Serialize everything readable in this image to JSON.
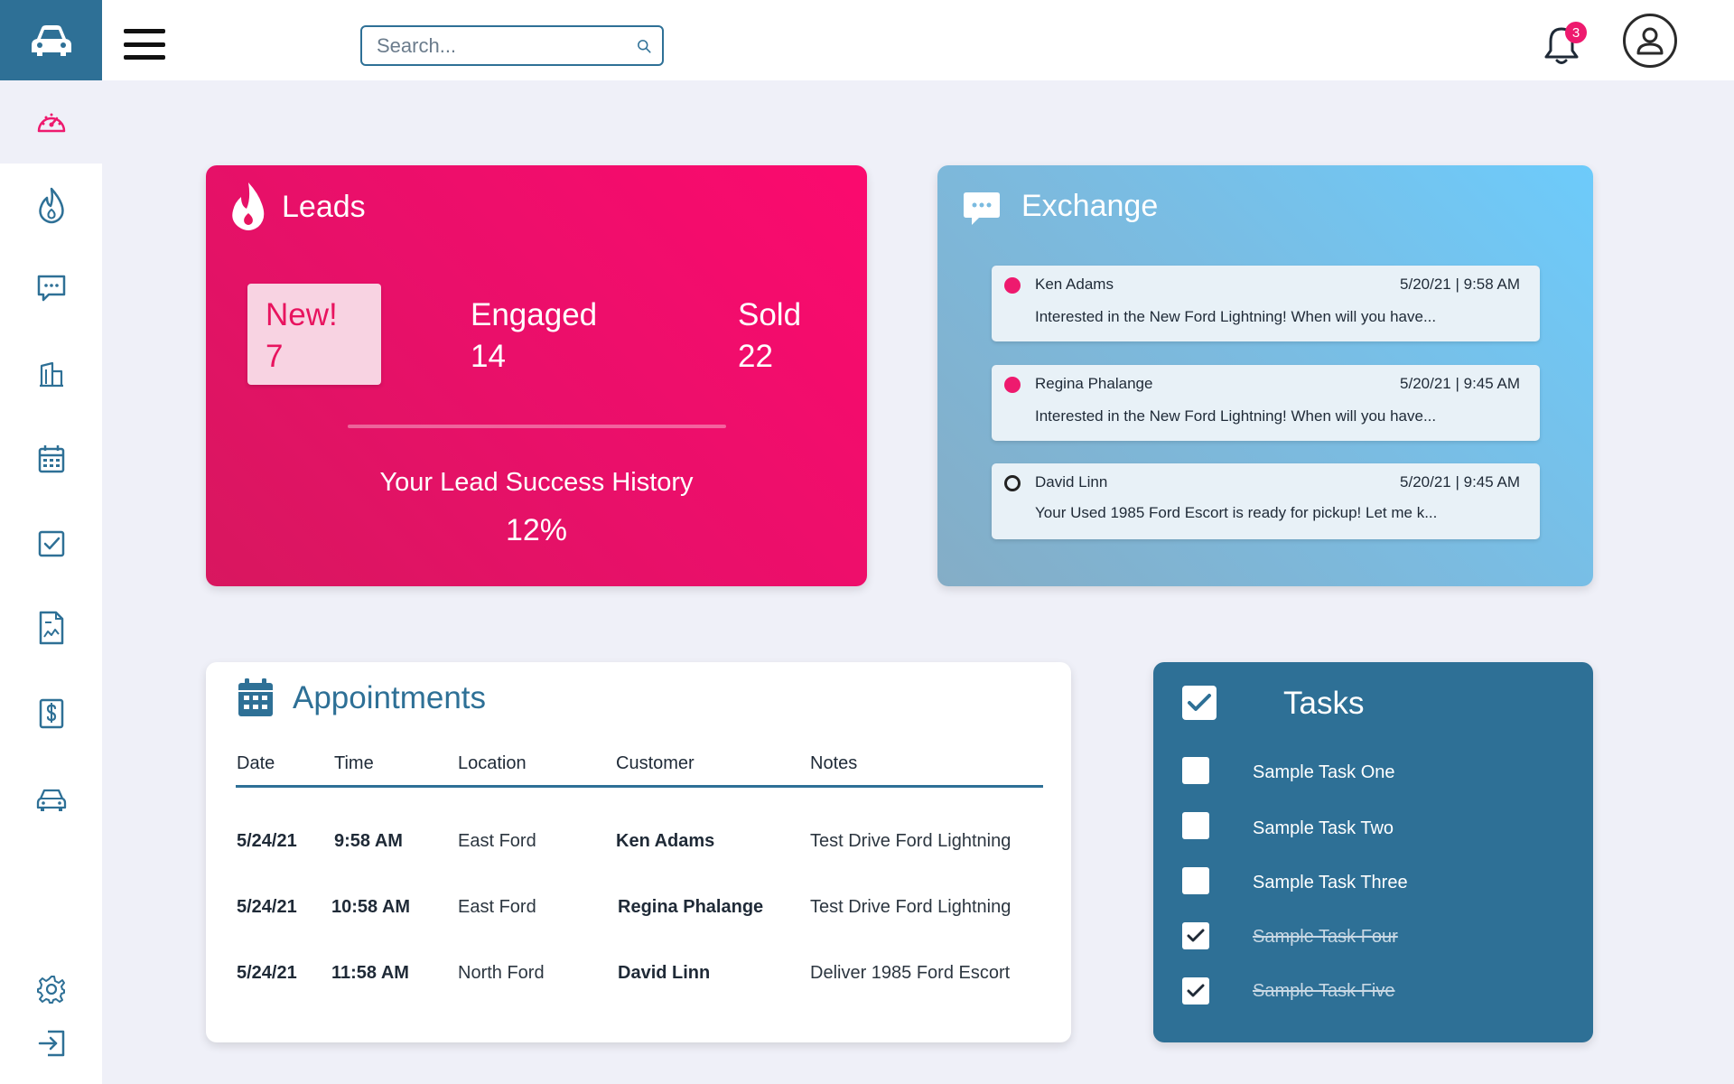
{
  "header": {
    "search_placeholder": "Search...",
    "notifications_count": "3"
  },
  "sidebar": {
    "items": [
      {
        "icon": "dashboard-gauge-icon",
        "active": true
      },
      {
        "icon": "flame-icon"
      },
      {
        "icon": "chat-icon"
      },
      {
        "icon": "building-icon"
      },
      {
        "icon": "calendar-icon"
      },
      {
        "icon": "checkbox-icon"
      },
      {
        "icon": "report-document-icon"
      },
      {
        "icon": "invoice-dollar-icon"
      },
      {
        "icon": "car-icon"
      },
      {
        "icon": "settings-gear-icon"
      },
      {
        "icon": "logout-icon"
      }
    ]
  },
  "leads": {
    "title": "Leads",
    "new_label": "New!",
    "new_value": "7",
    "engaged_label": "Engaged",
    "engaged_value": "14",
    "sold_label": "Sold",
    "sold_value": "22",
    "history_label": "Your Lead Success History",
    "history_value": "12%"
  },
  "exchange": {
    "title": "Exchange",
    "messages": [
      {
        "name": "Ken Adams",
        "time": "5/20/21  |  9:58 AM",
        "preview": "Interested in the New Ford Lightning!  When will you have...",
        "unread": true
      },
      {
        "name": "Regina Phalange",
        "time": "5/20/21  |  9:45 AM",
        "preview": "Interested in the New Ford Lightning!  When will you have...",
        "unread": true
      },
      {
        "name": "David Linn",
        "time": "5/20/21  |  9:45 AM",
        "preview": "Your Used 1985 Ford Escort is ready for pickup!  Let me k...",
        "unread": false
      }
    ]
  },
  "appointments": {
    "title": "Appointments",
    "columns": [
      "Date",
      "Time",
      "Location",
      "Customer",
      "Notes"
    ],
    "rows": [
      {
        "date": "5/24/21",
        "time": "9:58 AM",
        "location": "East Ford",
        "customer": "Ken Adams",
        "notes": "Test Drive Ford Lightning"
      },
      {
        "date": "5/24/21",
        "time": "10:58 AM",
        "location": "East Ford",
        "customer": "Regina Phalange",
        "notes": "Test Drive Ford Lightning"
      },
      {
        "date": "5/24/21",
        "time": "11:58 AM",
        "location": "North Ford",
        "customer": "David Linn",
        "notes": "Deliver 1985 Ford Escort"
      }
    ]
  },
  "tasks": {
    "title": "Tasks",
    "items": [
      {
        "label": "Sample Task One",
        "done": false
      },
      {
        "label": "Sample Task Two",
        "done": false
      },
      {
        "label": "Sample Task Three",
        "done": false
      },
      {
        "label": "Sample Task Four",
        "done": true
      },
      {
        "label": "Sample Task Five",
        "done": true
      }
    ]
  },
  "colors": {
    "brand_blue": "#2e7096",
    "accent_pink": "#ee1a6e",
    "background": "#eff0f8"
  }
}
